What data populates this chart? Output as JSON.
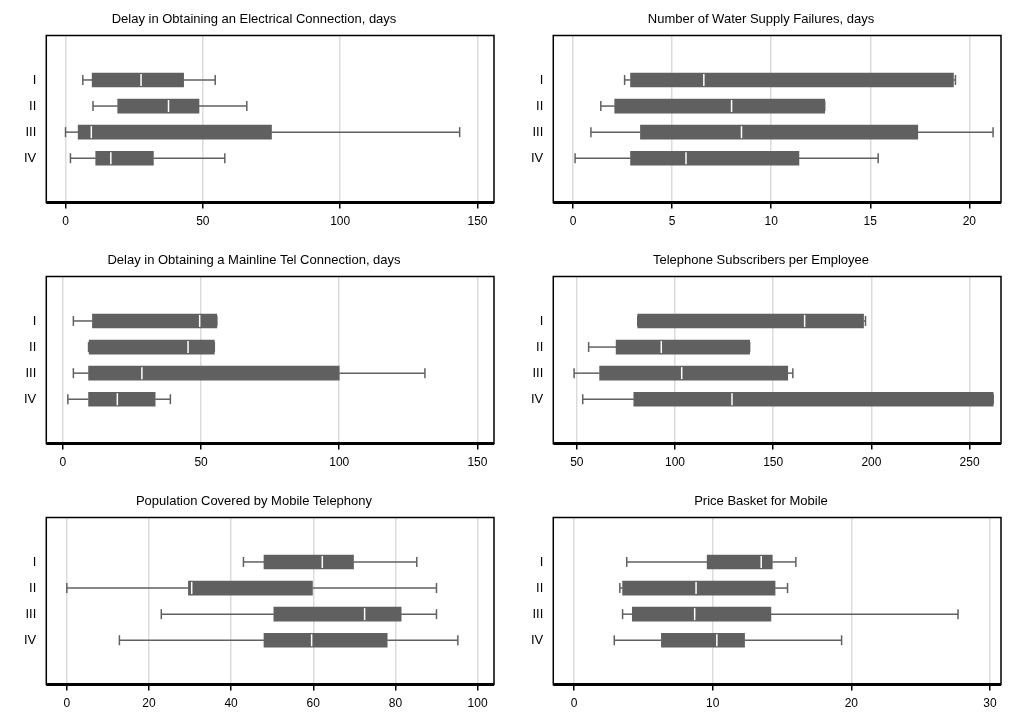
{
  "chart_data": [
    {
      "type": "box",
      "title": "Delay in Obtaining an Electrical Connection, days",
      "orientation": "horizontal",
      "categories": [
        "I",
        "II",
        "III",
        "IV"
      ],
      "color": "#606060",
      "xlim": [
        -7,
        156
      ],
      "xticks": [
        0,
        50,
        100,
        150
      ],
      "grid": "x",
      "boxes": [
        {
          "low": 6.3,
          "q1": 9.7,
          "median": 27.5,
          "q3": 43,
          "high": 54.5
        },
        {
          "low": 10,
          "q1": 19,
          "median": 37.5,
          "q3": 48.6,
          "high": 66
        },
        {
          "low": 0,
          "q1": 4.6,
          "median": 9.4,
          "q3": 75,
          "high": 143.5
        },
        {
          "low": 1.8,
          "q1": 11,
          "median": 16.5,
          "q3": 32,
          "high": 58
        }
      ]
    },
    {
      "type": "box",
      "title": "Number of Water Supply Failures, days",
      "orientation": "horizontal",
      "categories": [
        "I",
        "II",
        "III",
        "IV"
      ],
      "color": "#606060",
      "xlim": [
        -1,
        21.6
      ],
      "xticks": [
        0,
        5,
        10,
        15,
        20
      ],
      "grid": "x",
      "boxes": [
        {
          "low": 2.6,
          "q1": 2.9,
          "median": 6.6,
          "q3": 19.2,
          "high": 19.3
        },
        {
          "low": 1.4,
          "q1": 2.1,
          "median": 8,
          "q3": 12.7,
          "high": 12.7
        },
        {
          "low": 0.9,
          "q1": 3.4,
          "median": 8.5,
          "q3": 17.4,
          "high": 21.2
        },
        {
          "low": 0.1,
          "q1": 2.9,
          "median": 5.7,
          "q3": 11.4,
          "high": 15.4
        }
      ]
    },
    {
      "type": "box",
      "title": "Delay in Obtaining a Mainline Tel Connection, days",
      "orientation": "horizontal",
      "categories": [
        "I",
        "II",
        "III",
        "IV"
      ],
      "color": "#606060",
      "xlim": [
        -6,
        156
      ],
      "xticks": [
        0,
        50,
        100,
        150
      ],
      "grid": "x",
      "boxes": [
        {
          "low": 3.8,
          "q1": 10.7,
          "median": 49.5,
          "q3": 55.7,
          "high": 55.7
        },
        {
          "low": 9.3,
          "q1": 9.5,
          "median": 45.3,
          "q3": 54.8,
          "high": 54.8
        },
        {
          "low": 3.8,
          "q1": 9.3,
          "median": 28.6,
          "q3": 100,
          "high": 131
        },
        {
          "low": 1.8,
          "q1": 9.3,
          "median": 19.7,
          "q3": 33.4,
          "high": 38.9
        }
      ]
    },
    {
      "type": "box",
      "title": "Telephone Subscribers per Employee",
      "orientation": "horizontal",
      "categories": [
        "I",
        "II",
        "III",
        "IV"
      ],
      "color": "#606060",
      "xlim": [
        38,
        266
      ],
      "xticks": [
        50,
        100,
        150,
        200,
        250
      ],
      "grid": "x",
      "boxes": [
        {
          "low": 81,
          "q1": 81,
          "median": 166,
          "q3": 196,
          "high": 197
        },
        {
          "low": 56,
          "q1": 70,
          "median": 93,
          "q3": 138,
          "high": 138
        },
        {
          "low": 48.6,
          "q1": 61.6,
          "median": 103.4,
          "q3": 157.4,
          "high": 160
        },
        {
          "low": 53,
          "q1": 79,
          "median": 129,
          "q3": 262,
          "high": 262
        }
      ]
    },
    {
      "type": "box",
      "title": "Population Covered by Mobile Telephony",
      "orientation": "horizontal",
      "categories": [
        "I",
        "II",
        "III",
        "IV"
      ],
      "color": "#606060",
      "xlim": [
        -5,
        104
      ],
      "xticks": [
        0,
        20,
        40,
        60,
        80,
        100
      ],
      "grid": "x",
      "boxes": [
        {
          "low": 43,
          "q1": 48,
          "median": 62.2,
          "q3": 69.8,
          "high": 85.2
        },
        {
          "low": 0,
          "q1": 29.6,
          "median": 30.4,
          "q3": 59.8,
          "high": 90
        },
        {
          "low": 23,
          "q1": 50.4,
          "median": 72.5,
          "q3": 81.4,
          "high": 90
        },
        {
          "low": 12.8,
          "q1": 48,
          "median": 59.6,
          "q3": 78,
          "high": 95.2
        }
      ]
    },
    {
      "type": "box",
      "title": "Price Basket for Mobile",
      "orientation": "horizontal",
      "categories": [
        "I",
        "II",
        "III",
        "IV"
      ],
      "color": "#606060",
      "xlim": [
        -1.5,
        30.8
      ],
      "xticks": [
        0,
        10,
        20,
        30
      ],
      "grid": "x",
      "boxes": [
        {
          "low": 3.8,
          "q1": 9.6,
          "median": 13.5,
          "q3": 14.3,
          "high": 16
        },
        {
          "low": 3.3,
          "q1": 3.5,
          "median": 8.8,
          "q3": 14.5,
          "high": 15.4
        },
        {
          "low": 3.5,
          "q1": 4.2,
          "median": 8.7,
          "q3": 14.2,
          "high": 27.7
        },
        {
          "low": 2.9,
          "q1": 6.3,
          "median": 10.3,
          "q3": 12.3,
          "high": 19.3
        }
      ]
    }
  ]
}
